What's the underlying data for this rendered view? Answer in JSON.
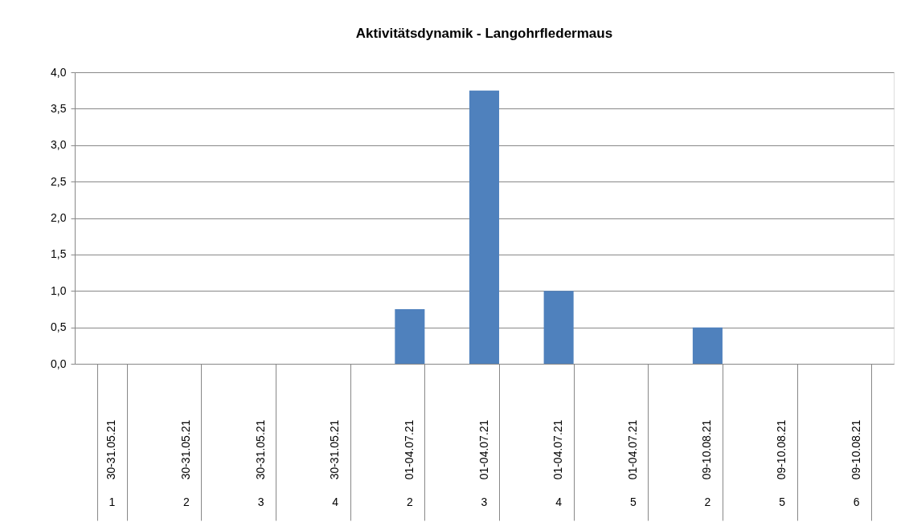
{
  "chart_data": {
    "type": "bar",
    "title": "Aktivitätsdynamik - Langohrfledermaus",
    "categories": [
      "30-31.05.21 1",
      "30-31.05.21 2",
      "30-31.05.21 3",
      "30-31.05.21 4",
      "01-04.07.21 2",
      "01-04.07.21 3",
      "01-04.07.21 4",
      "01-04.07.21 5",
      "09-10.08.21 2",
      "09-10.08.21 5",
      "09-10.08.21 6"
    ],
    "values": [
      0,
      0,
      0,
      0,
      0.75,
      3.75,
      1.0,
      0,
      0.5,
      0,
      0
    ],
    "color": "#4f81bd",
    "ylim": [
      0,
      4
    ],
    "yticks": [
      {
        "value": 0,
        "label": "0,0"
      },
      {
        "value": 0.5,
        "label": "0,5"
      },
      {
        "value": 1,
        "label": "1,0"
      },
      {
        "value": 1.5,
        "label": "1,5"
      },
      {
        "value": 2,
        "label": "2,0"
      },
      {
        "value": 2.5,
        "label": "2,5"
      },
      {
        "value": 3,
        "label": "3,0"
      },
      {
        "value": 3.5,
        "label": "3,5"
      },
      {
        "value": 4,
        "label": "4,0"
      }
    ],
    "grid": "y"
  }
}
